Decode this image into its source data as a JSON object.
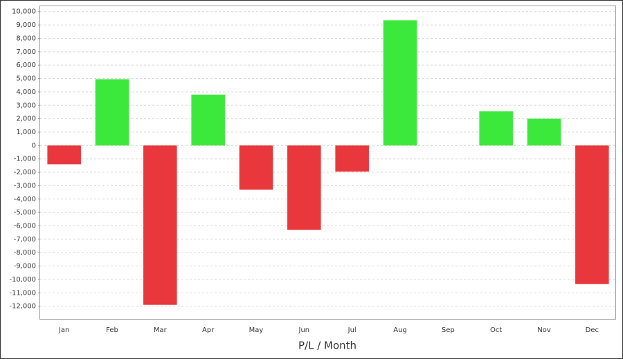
{
  "chart_data": {
    "type": "bar",
    "x_label": "P/L / Month",
    "categories": [
      "Jan",
      "Feb",
      "Mar",
      "Apr",
      "May",
      "Jun",
      "Jul",
      "Aug",
      "Sep",
      "Oct",
      "Nov",
      "Dec"
    ],
    "values": [
      -1400,
      4950,
      -11900,
      3800,
      -3300,
      -6300,
      -1950,
      9350,
      0,
      2550,
      2000,
      -10350
    ],
    "positive_color": "#3de83c",
    "negative_color": "#e8373d",
    "ylim": [
      -13000,
      10400
    ],
    "yticks": [
      {
        "value": -12000,
        "label": "-12,000"
      },
      {
        "value": -11000,
        "label": "-11,000"
      },
      {
        "value": -10000,
        "label": "-10,000"
      },
      {
        "value": -9000,
        "label": "-9,000"
      },
      {
        "value": -8000,
        "label": "-8,000"
      },
      {
        "value": -7000,
        "label": "-7,000"
      },
      {
        "value": -6000,
        "label": "-6,000"
      },
      {
        "value": -5000,
        "label": "-5,000"
      },
      {
        "value": -4000,
        "label": "-4,000"
      },
      {
        "value": -3000,
        "label": "-3,000"
      },
      {
        "value": -2000,
        "label": "-2,000"
      },
      {
        "value": -1000,
        "label": "-1,000"
      },
      0,
      {
        "value": 1000,
        "label": "1,000"
      },
      {
        "value": 2000,
        "label": "2,000"
      },
      {
        "value": 3000,
        "label": "3,000"
      },
      {
        "value": 4000,
        "label": "4,000"
      },
      {
        "value": 5000,
        "label": "5,000"
      },
      {
        "value": 6000,
        "label": "6,000"
      },
      {
        "value": 7000,
        "label": "7,000"
      },
      {
        "value": 8000,
        "label": "8,000"
      },
      {
        "value": 9000,
        "label": "9,000"
      },
      {
        "value": 10000,
        "label": "10,000"
      }
    ],
    "grid": true
  }
}
